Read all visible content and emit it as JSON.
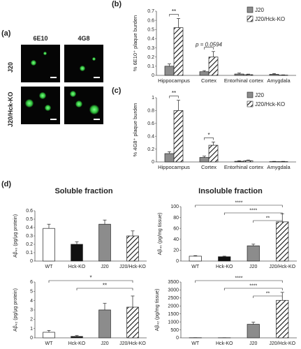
{
  "panels": {
    "a": "(a)",
    "b": "(b)",
    "c": "(c)",
    "d": "(d)"
  },
  "micrographs": {
    "columns": [
      "6E10",
      "4G8"
    ],
    "rows": [
      "J20",
      "J20/Hck-KO"
    ]
  },
  "sections": {
    "soluble": "Soluble fraction",
    "insoluble": "Insoluble fraction"
  },
  "chart_data": [
    {
      "id": "b",
      "type": "bar",
      "categories": [
        "Hippocampus",
        "Cortex",
        "Entorhinal cortex",
        "Amygdala"
      ],
      "series": [
        {
          "name": "J20",
          "values": [
            0.1,
            0.04,
            0.015,
            0.012
          ],
          "errors": [
            0.025,
            0.012,
            0.01,
            0.008
          ]
        },
        {
          "name": "J20/Hck-KO",
          "values": [
            0.52,
            0.2,
            0.008,
            0.003
          ],
          "errors": [
            0.1,
            0.06,
            0.006,
            0.003
          ]
        }
      ],
      "ylabel": "% 6E10⁺ plaque burden",
      "ylim": [
        0,
        0.7
      ],
      "yticks": [
        "0",
        "0.1",
        "0.2",
        "0.3",
        "0.4",
        "0.5",
        "0.6",
        "0.7"
      ],
      "annotations": [
        {
          "label": "**",
          "group": 0
        },
        {
          "label": "p = 0.0594",
          "group": 1
        }
      ],
      "legend": "top-right"
    },
    {
      "id": "c",
      "type": "bar",
      "categories": [
        "Hippocampus",
        "Cortex",
        "Entorhinal cortex",
        "Amygdala"
      ],
      "series": [
        {
          "name": "J20",
          "values": [
            0.13,
            0.07,
            0.01,
            0.005
          ],
          "errors": [
            0.03,
            0.02,
            0.008,
            0.004
          ]
        },
        {
          "name": "J20/Hck-KO",
          "values": [
            0.8,
            0.26,
            0.02,
            0.005
          ],
          "errors": [
            0.16,
            0.05,
            0.01,
            0.004
          ]
        }
      ],
      "ylabel": "% 4G8⁺ plaque burden",
      "ylim": [
        0,
        1
      ],
      "yticks": [
        "0",
        "0.2",
        "0.4",
        "0.6",
        "0.8",
        "1"
      ],
      "annotations": [
        {
          "label": "**",
          "group": 0
        },
        {
          "label": "*",
          "group": 1
        }
      ],
      "legend": "top-right"
    },
    {
      "id": "d1",
      "type": "bar",
      "categories": [
        "WT",
        "Hck-KO",
        "J20",
        "J20/Hck-KO"
      ],
      "values": [
        0.39,
        0.2,
        0.44,
        0.3
      ],
      "errors": [
        0.05,
        0.03,
        0.05,
        0.06
      ],
      "ylabel": "Aβ₄₀ (pg/μg protein)",
      "ylim": [
        0,
        0.6
      ],
      "yticks": [
        "0",
        "0.1",
        "0.2",
        "0.3",
        "0.4",
        "0.5",
        "0.6"
      ],
      "annotations": []
    },
    {
      "id": "d2",
      "type": "bar",
      "categories": [
        "WT",
        "Hck-KO",
        "J20",
        "J20/Hck-KO"
      ],
      "values": [
        9,
        8,
        28,
        72
      ],
      "errors": [
        1,
        1,
        3,
        15
      ],
      "ylabel": "Aβ₄₀ (pg/mg tissue)",
      "ylim": [
        0,
        100
      ],
      "yticks": [
        "0",
        "20",
        "40",
        "60",
        "80",
        "100"
      ],
      "annotations": [
        {
          "label": "****",
          "from": 0,
          "to": 3
        },
        {
          "label": "****",
          "from": 1,
          "to": 3
        },
        {
          "label": "**",
          "from": 2,
          "to": 3
        }
      ]
    },
    {
      "id": "d3",
      "type": "bar",
      "categories": [
        "WT",
        "Hck-KO",
        "J20",
        "J20/Hck-KO"
      ],
      "values": [
        0.6,
        0.15,
        3.0,
        3.3
      ],
      "errors": [
        0.2,
        0.1,
        0.7,
        1.2
      ],
      "ylabel": "Aβ₄₂ (pg/μg protein)",
      "ylim": [
        0,
        6
      ],
      "yticks": [
        "0",
        "1",
        "2",
        "3",
        "4",
        "5",
        "6"
      ],
      "annotations": [
        {
          "label": "*",
          "from": 0,
          "to": 3
        },
        {
          "label": "**",
          "from": 1,
          "to": 3
        }
      ]
    },
    {
      "id": "d4",
      "type": "bar",
      "categories": [
        "WT",
        "Hck-KO",
        "J20",
        "J20/Hck-KO"
      ],
      "values": [
        10,
        8,
        850,
        2350
      ],
      "errors": [
        2,
        2,
        130,
        500
      ],
      "ylabel": "Aβ₄₂ (pg/mg tissue)",
      "ylim": [
        0,
        3500
      ],
      "yticks": [
        "0",
        "500",
        "1000",
        "1500",
        "2000",
        "2500",
        "3000",
        "3500"
      ],
      "annotations": [
        {
          "label": "****",
          "from": 0,
          "to": 3
        },
        {
          "label": "****",
          "from": 1,
          "to": 3
        },
        {
          "label": "**",
          "from": 2,
          "to": 3
        }
      ]
    }
  ]
}
